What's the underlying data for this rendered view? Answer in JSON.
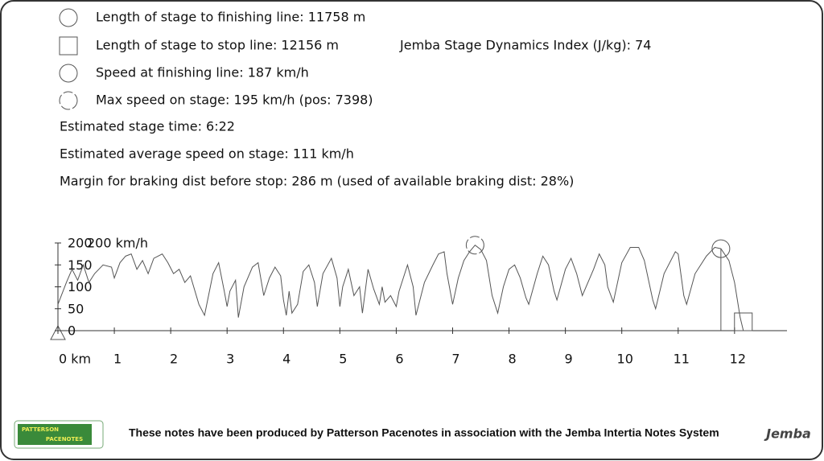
{
  "info": {
    "lines": [
      "Length of stage to finishing line: 11758 m",
      "Length of stage to stop line: 12156 m",
      "Speed at finishing line: 187 km/h",
      "Max speed on stage: 195 km/h (pos: 7398)",
      "Estimated stage time: 6:22",
      "Estimated average speed on stage: 111 km/h",
      "Margin for braking dist before stop: 286 m (used of available braking dist: 28%)"
    ],
    "index": "Jemba Stage Dynamics Index (J/kg): 74"
  },
  "chart_data": {
    "type": "line",
    "ylabel": "200 km/h",
    "color": "#555555",
    "x": [
      0,
      0.15,
      0.25,
      0.35,
      0.45,
      0.55,
      0.65,
      0.8,
      0.95,
      1.0,
      1.1,
      1.2,
      1.3,
      1.4,
      1.5,
      1.6,
      1.7,
      1.85,
      1.95,
      2.05,
      2.15,
      2.25,
      2.35,
      2.5,
      2.6,
      2.75,
      2.85,
      2.95,
      3.0,
      3.05,
      3.15,
      3.2,
      3.3,
      3.45,
      3.55,
      3.65,
      3.75,
      3.85,
      3.95,
      4.0,
      4.05,
      4.1,
      4.15,
      4.25,
      4.35,
      4.45,
      4.55,
      4.6,
      4.7,
      4.85,
      4.95,
      5.0,
      5.05,
      5.15,
      5.25,
      5.35,
      5.4,
      5.5,
      5.6,
      5.7,
      5.75,
      5.8,
      5.9,
      6.0,
      6.05,
      6.2,
      6.3,
      6.35,
      6.5,
      6.65,
      6.75,
      6.85,
      6.9,
      7.0,
      7.1,
      7.2,
      7.3,
      7.398,
      7.5,
      7.6,
      7.7,
      7.8,
      7.9,
      8.0,
      8.1,
      8.2,
      8.3,
      8.35,
      8.5,
      8.6,
      8.7,
      8.8,
      8.85,
      9.0,
      9.1,
      9.2,
      9.3,
      9.5,
      9.6,
      9.7,
      9.75,
      9.85,
      10.0,
      10.15,
      10.3,
      10.4,
      10.55,
      10.6,
      10.75,
      10.95,
      11.0,
      11.1,
      11.15,
      11.3,
      11.5,
      11.65,
      11.758,
      11.9,
      12.0,
      12.1,
      12.156
    ],
    "values": [
      60,
      110,
      140,
      115,
      150,
      110,
      130,
      150,
      145,
      120,
      155,
      170,
      175,
      140,
      160,
      130,
      165,
      175,
      155,
      130,
      140,
      110,
      125,
      60,
      35,
      130,
      155,
      90,
      55,
      90,
      115,
      30,
      100,
      145,
      155,
      80,
      120,
      145,
      125,
      70,
      35,
      90,
      40,
      60,
      135,
      150,
      110,
      55,
      130,
      165,
      120,
      55,
      100,
      140,
      80,
      100,
      40,
      140,
      95,
      60,
      100,
      65,
      80,
      55,
      90,
      150,
      100,
      35,
      110,
      150,
      175,
      180,
      130,
      60,
      120,
      160,
      180,
      195,
      185,
      160,
      80,
      40,
      100,
      140,
      150,
      120,
      75,
      60,
      130,
      170,
      150,
      90,
      70,
      140,
      165,
      130,
      80,
      140,
      175,
      150,
      100,
      65,
      155,
      190,
      190,
      160,
      70,
      50,
      130,
      180,
      175,
      80,
      60,
      130,
      170,
      190,
      187,
      160,
      110,
      30,
      0
    ],
    "xlim": [
      0,
      12.93
    ],
    "ylim": [
      0,
      200
    ],
    "xticks": [
      {
        "value": 0,
        "label": "0 km"
      },
      1,
      2,
      3,
      4,
      5,
      6,
      7,
      8,
      9,
      10,
      11,
      12
    ],
    "yticks": [
      0,
      50,
      100,
      150,
      200
    ],
    "markers": {
      "max_speed": {
        "x": 7.398,
        "y": 195
      },
      "finish": {
        "x": 11.758,
        "y": 187
      },
      "stop": {
        "x": 12.156,
        "y": 0
      }
    }
  },
  "footer": {
    "text": "These notes have been produced by Patterson Pacenotes in association with the Jemba Intertia Notes System",
    "logo_left_top": "PATTERSON",
    "logo_left_bottom": "PACENOTES",
    "logo_right": "Jemba"
  }
}
